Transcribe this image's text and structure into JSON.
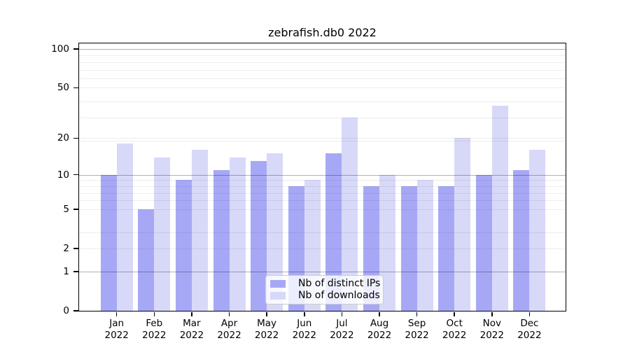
{
  "title": "zebrafish.db0 2022",
  "legend": {
    "items": [
      {
        "label": "Nb of distinct IPs",
        "color": "#a7a8f5"
      },
      {
        "label": "Nb of downloads",
        "color": "#d8d9f8"
      }
    ]
  },
  "colors": {
    "ips_bar": "#a7a8f5",
    "downloads_bar": "#d8d9f8",
    "grid_major": "rgba(0,0,0,0.30)",
    "grid_minor": "rgba(0,0,0,0.07)",
    "axis": "#000000",
    "legend_border": "#cccccc"
  },
  "chart_data": {
    "type": "bar",
    "title": "zebrafish.db0 2022",
    "categories": [
      "Jan 2022",
      "Feb 2022",
      "Mar 2022",
      "Apr 2022",
      "May 2022",
      "Jun 2022",
      "Jul 2022",
      "Aug 2022",
      "Sep 2022",
      "Oct 2022",
      "Nov 2022",
      "Dec 2022"
    ],
    "series": [
      {
        "name": "Nb of distinct IPs",
        "color": "#a7a8f5",
        "values": [
          10,
          5,
          9,
          11,
          13,
          8,
          15,
          8,
          8,
          8,
          10,
          11
        ]
      },
      {
        "name": "Nb of downloads",
        "color": "#d8d9f8",
        "values": [
          18,
          14,
          16,
          14,
          15,
          9,
          29,
          10,
          9,
          20,
          36,
          16
        ]
      }
    ],
    "y_scale": "log10(1+x)",
    "y_ticks": [
      100,
      50,
      20,
      10,
      5,
      2,
      1,
      0
    ],
    "y_axis_top_value": 110,
    "ylim": [
      0,
      110
    ],
    "grid": true,
    "grid_major_at": [
      1,
      10,
      100
    ],
    "legend_position": "lower center",
    "xlabel": "",
    "ylabel": ""
  }
}
